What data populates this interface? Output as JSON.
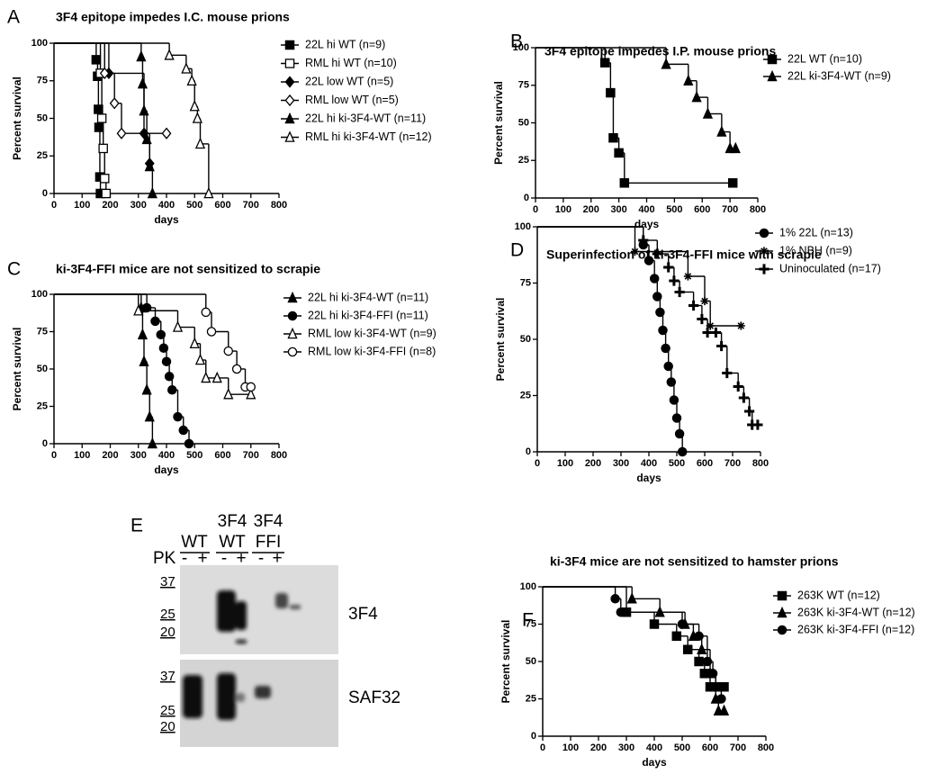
{
  "chart_data": [
    {
      "type": "survival",
      "panel": "A",
      "title": "3F4 epitope impedes I.C. mouse prions",
      "ylabel": "Percent survival",
      "xlabel": "days",
      "xlim": [
        0,
        800
      ],
      "xticks": [
        0,
        100,
        200,
        300,
        400,
        500,
        600,
        700,
        800
      ],
      "ylim": [
        0,
        100
      ],
      "yticks": [
        0,
        25,
        50,
        75,
        100
      ],
      "legend": "right",
      "series": [
        {
          "name": "22L hi WT (n=9)",
          "color": "#000000",
          "marker": "square",
          "x": [
            0,
            150,
            155,
            158,
            160,
            163,
            165
          ],
          "values": [
            100,
            89,
            78,
            56,
            44,
            11,
            0
          ]
        },
        {
          "name": "RML hi WT (n=10)",
          "color": "#000000",
          "marker": "square-open",
          "x": [
            0,
            165,
            170,
            175,
            180,
            185
          ],
          "values": [
            100,
            80,
            50,
            30,
            10,
            0
          ]
        },
        {
          "name": "22L low WT (n=5)",
          "color": "#000000",
          "marker": "diamond",
          "x": [
            0,
            195,
            320,
            340
          ],
          "values": [
            100,
            80,
            40,
            20
          ]
        },
        {
          "name": "RML low WT (n=5)",
          "color": "#000000",
          "marker": "diamond-open",
          "x": [
            0,
            180,
            215,
            240,
            400
          ],
          "values": [
            100,
            80,
            60,
            40,
            40
          ]
        },
        {
          "name": "22L hi ki-3F4-WT (n=11)",
          "color": "#000000",
          "marker": "triangle",
          "x": [
            0,
            310,
            315,
            320,
            330,
            340,
            350
          ],
          "values": [
            100,
            91,
            73,
            55,
            36,
            18,
            0
          ]
        },
        {
          "name": "RML hi ki-3F4-WT (n=12)",
          "color": "#000000",
          "marker": "triangle-open",
          "x": [
            0,
            410,
            470,
            490,
            500,
            510,
            520,
            550
          ],
          "values": [
            100,
            92,
            83,
            75,
            58,
            50,
            33,
            0
          ]
        }
      ]
    },
    {
      "type": "survival",
      "panel": "B",
      "title": "3F4 epitope impedes I.P. mouse prions",
      "ylabel": "Percent survival",
      "xlabel": "days",
      "xlim": [
        0,
        800
      ],
      "xticks": [
        0,
        100,
        200,
        300,
        400,
        500,
        600,
        700,
        800
      ],
      "ylim": [
        0,
        100
      ],
      "yticks": [
        0,
        25,
        50,
        75,
        100
      ],
      "legend": "right",
      "series": [
        {
          "name": "22L WT (n=10)",
          "color": "#000000",
          "marker": "square",
          "x": [
            0,
            250,
            270,
            280,
            300,
            320,
            710
          ],
          "values": [
            100,
            90,
            70,
            40,
            30,
            10,
            10
          ]
        },
        {
          "name": "22L ki-3F4-WT (n=9)",
          "color": "#000000",
          "marker": "triangle",
          "x": [
            0,
            470,
            550,
            580,
            620,
            670,
            700,
            720
          ],
          "values": [
            100,
            89,
            78,
            67,
            56,
            44,
            33,
            33
          ]
        }
      ]
    },
    {
      "type": "survival",
      "panel": "C",
      "title": "ki-3F4-FFI mice are not sensitized to scrapie",
      "ylabel": "Percent survival",
      "xlabel": "days",
      "xlim": [
        0,
        800
      ],
      "xticks": [
        0,
        100,
        200,
        300,
        400,
        500,
        600,
        700,
        800
      ],
      "ylim": [
        0,
        100
      ],
      "yticks": [
        0,
        25,
        50,
        75,
        100
      ],
      "legend": "right",
      "series": [
        {
          "name": "22L hi ki-3F4-WT (n=11)",
          "color": "#000000",
          "marker": "triangle",
          "x": [
            0,
            310,
            315,
            320,
            330,
            340,
            350
          ],
          "values": [
            100,
            91,
            73,
            55,
            36,
            18,
            0
          ]
        },
        {
          "name": "22L hi ki-3F4-FFI (n=11)",
          "color": "#000000",
          "marker": "circle",
          "x": [
            0,
            330,
            360,
            380,
            390,
            400,
            410,
            420,
            440,
            460,
            480
          ],
          "values": [
            100,
            91,
            82,
            73,
            64,
            55,
            45,
            36,
            18,
            9,
            0
          ]
        },
        {
          "name": "RML low ki-3F4-WT (n=9)",
          "color": "#000000",
          "marker": "triangle-open",
          "x": [
            0,
            300,
            440,
            500,
            520,
            540,
            580,
            620,
            700
          ],
          "values": [
            100,
            89,
            78,
            67,
            56,
            44,
            44,
            33,
            33
          ]
        },
        {
          "name": "RML low ki-3F4-FFI (n=8)",
          "color": "#000000",
          "marker": "circle-open",
          "x": [
            0,
            540,
            560,
            620,
            650,
            680,
            700
          ],
          "values": [
            100,
            88,
            75,
            62,
            50,
            38,
            38
          ]
        }
      ]
    },
    {
      "type": "survival",
      "panel": "D",
      "title": "Superinfection of ki-3F4-FFI mice with scrapie",
      "ylabel": "Percent survival",
      "xlabel": "days",
      "xlim": [
        0,
        800
      ],
      "xticks": [
        0,
        100,
        200,
        300,
        400,
        500,
        600,
        700,
        800
      ],
      "ylim": [
        0,
        100
      ],
      "yticks": [
        0,
        25,
        50,
        75,
        100
      ],
      "legend": "right",
      "series": [
        {
          "name": "1% 22L (n=13)",
          "color": "#000000",
          "marker": "circle",
          "x": [
            0,
            380,
            400,
            420,
            430,
            440,
            450,
            460,
            470,
            480,
            490,
            500,
            510,
            520
          ],
          "values": [
            100,
            92,
            85,
            77,
            69,
            62,
            54,
            46,
            38,
            31,
            23,
            15,
            8,
            0
          ]
        },
        {
          "name": "1% NBH (n=9)",
          "color": "#000000",
          "marker": "star",
          "x": [
            0,
            350,
            540,
            600,
            620,
            730
          ],
          "values": [
            100,
            89,
            78,
            67,
            56,
            56
          ]
        },
        {
          "name": "Uninoculated (n=17)",
          "color": "#000000",
          "marker": "plus",
          "x": [
            0,
            380,
            430,
            470,
            490,
            510,
            560,
            590,
            610,
            640,
            660,
            680,
            720,
            740,
            760,
            770,
            790
          ],
          "values": [
            100,
            94,
            88,
            82,
            76,
            71,
            65,
            59,
            53,
            53,
            47,
            35,
            29,
            24,
            18,
            12,
            12
          ]
        }
      ]
    },
    {
      "type": "survival",
      "panel": "F",
      "title": "ki-3F4 mice are not sensitized to hamster prions",
      "ylabel": "Percent survival",
      "xlabel": "days",
      "xlim": [
        0,
        800
      ],
      "xticks": [
        0,
        100,
        200,
        300,
        400,
        500,
        600,
        700,
        800
      ],
      "ylim": [
        0,
        100
      ],
      "yticks": [
        0,
        25,
        50,
        75,
        100
      ],
      "legend": "right",
      "series": [
        {
          "name": "263K WT (n=12)",
          "color": "#000000",
          "marker": "square",
          "x": [
            0,
            300,
            400,
            480,
            520,
            560,
            580,
            600,
            630,
            650
          ],
          "values": [
            100,
            83,
            75,
            67,
            58,
            50,
            42,
            33,
            33,
            33
          ]
        },
        {
          "name": "263K ki-3F4-WT (n=12)",
          "color": "#000000",
          "marker": "triangle",
          "x": [
            0,
            320,
            420,
            510,
            540,
            570,
            600,
            620,
            630,
            650
          ],
          "values": [
            100,
            92,
            83,
            75,
            67,
            58,
            42,
            25,
            17,
            17
          ]
        },
        {
          "name": "263K ki-3F4-FFI (n=12)",
          "color": "#000000",
          "marker": "circle",
          "x": [
            0,
            260,
            280,
            500,
            560,
            590,
            610,
            620,
            640
          ],
          "values": [
            100,
            92,
            83,
            75,
            67,
            50,
            42,
            33,
            25
          ]
        }
      ]
    }
  ],
  "blot": {
    "panel": "E",
    "groups": [
      [
        "WT"
      ],
      [
        "3F4",
        "WT"
      ],
      [
        "3F4",
        "FFI"
      ]
    ],
    "pk_label": "PK",
    "pk_lanes": [
      "-",
      "+",
      "-",
      "+",
      "-",
      "+"
    ],
    "markers": [
      [
        37,
        25,
        20
      ],
      [
        37,
        25,
        20
      ]
    ],
    "antibodies": [
      "3F4",
      "SAF32"
    ]
  }
}
